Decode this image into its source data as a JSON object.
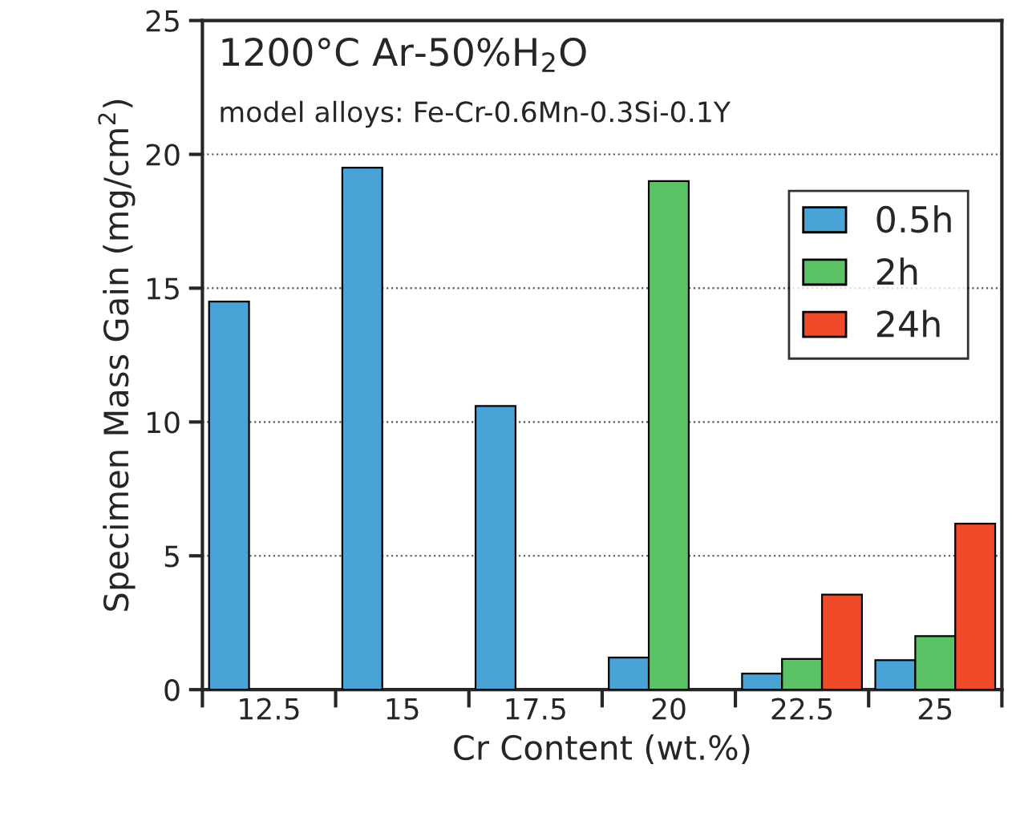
{
  "chart_data": {
    "type": "bar",
    "title": "1200°C Ar-50%H$_{2}$O",
    "subtitle": "model alloys: Fe-Cr-0.6Mn-0.3Si-0.1Y",
    "xlabel": "Cr Content (wt.%)",
    "ylabel": "Specimen Mass Gain (mg/cm$^{2}$)",
    "categories": [
      "12.5",
      "15",
      "17.5",
      "20",
      "22.5",
      "25"
    ],
    "series": [
      {
        "name": "0.5h",
        "color": "#4aa3d6",
        "values": [
          14.5,
          19.5,
          10.6,
          1.2,
          0.6,
          1.1
        ]
      },
      {
        "name": "2h",
        "color": "#5cc266",
        "values": [
          null,
          null,
          null,
          19.0,
          1.15,
          2.0
        ]
      },
      {
        "name": "24h",
        "color": "#f04a2a",
        "values": [
          null,
          null,
          null,
          null,
          3.55,
          6.2
        ]
      }
    ],
    "ylim": [
      0,
      25
    ],
    "yticks": [
      0,
      5,
      10,
      15,
      20,
      25
    ],
    "grid": "y",
    "legend": "right"
  }
}
